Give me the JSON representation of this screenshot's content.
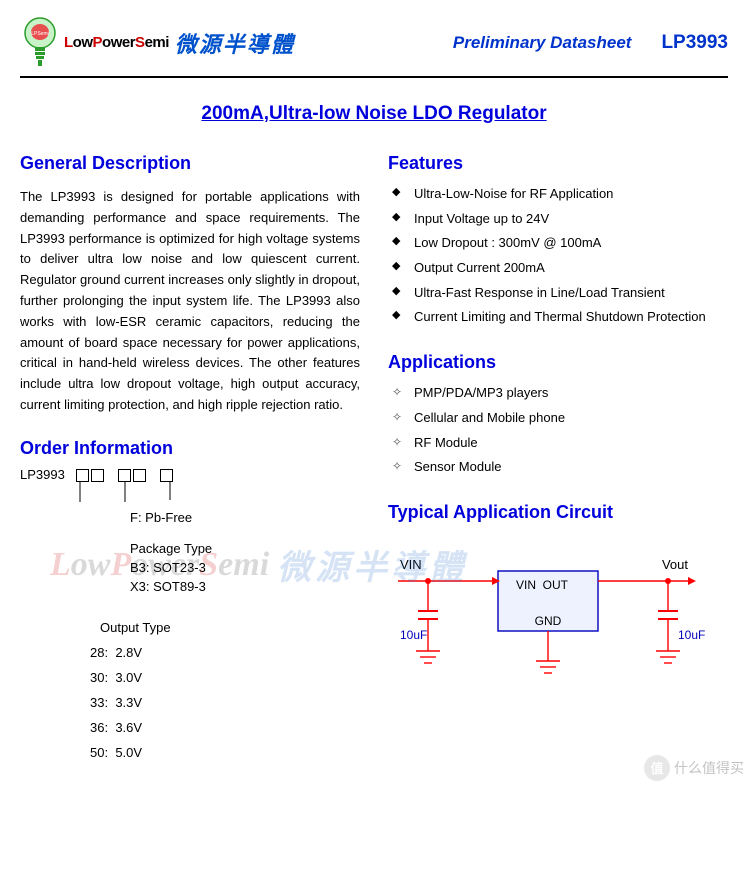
{
  "header": {
    "brand_en_parts": [
      "L",
      "ow",
      "P",
      "ower",
      "S",
      "emi"
    ],
    "brand_cn": "微源半導體",
    "preliminary": "Preliminary Datasheet",
    "part": "LP3993",
    "bulb_label": "LPSemi"
  },
  "title": "200mA,Ultra-low Noise LDO Regulator",
  "sections": {
    "general_heading": "General Description",
    "general_text": "The LP3993 is designed for portable applications with demanding performance and space requirements. The LP3993 performance is optimized for high voltage systems to deliver ultra low noise and low quiescent current. Regulator ground current increases only slightly in dropout, further prolonging the input system life. The LP3993 also works with low-ESR ceramic capacitors, reducing the amount of board space necessary for power applications, critical in hand-held wireless devices. The other features include ultra low dropout voltage, high output accuracy, current limiting protection, and high ripple rejection ratio.",
    "order_heading": "Order Information",
    "features_heading": "Features",
    "applications_heading": "Applications",
    "circuit_heading": "Typical Application Circuit"
  },
  "features": [
    "Ultra-Low-Noise for RF Application",
    "Input Voltage up to 24V",
    "Low Dropout : 300mV @ 100mA",
    "Output Current 200mA",
    "Ultra-Fast Response in Line/Load Transient",
    "Current Limiting and Thermal Shutdown Protection"
  ],
  "applications": [
    "PMP/PDA/MP3 players",
    "Cellular and Mobile phone",
    "RF Module",
    "Sensor Module"
  ],
  "order": {
    "prefix": "LP3993",
    "f_label": "F: Pb-Free",
    "pkg_heading": "Package Type",
    "pkg_options": [
      "B3: SOT23-3",
      "X3: SOT89-3"
    ],
    "out_heading": "Output Type",
    "out_options": [
      {
        "code": "28:",
        "v": "2.8V"
      },
      {
        "code": "30:",
        "v": "3.0V"
      },
      {
        "code": "33:",
        "v": "3.3V"
      },
      {
        "code": "36:",
        "v": "3.6V"
      },
      {
        "code": "50:",
        "v": "5.0V"
      }
    ]
  },
  "circuit": {
    "vin_label": "VIN",
    "vout_label": "Vout",
    "pin_vin": "VIN",
    "pin_out": "OUT",
    "pin_gnd": "GND",
    "cap_value": "10uF",
    "colors": {
      "wire": "#ff0000",
      "ic_border": "#0000bb",
      "ic_fill": "#eef2ff",
      "text": "#000000"
    },
    "line_width": 1.4
  },
  "watermark": {
    "en_parts": [
      "L",
      "ow",
      "P",
      "ower",
      "S",
      "emi"
    ],
    "cn": "微源半導體"
  },
  "corner_badge": {
    "circle": "值",
    "text": "什么值得买"
  }
}
